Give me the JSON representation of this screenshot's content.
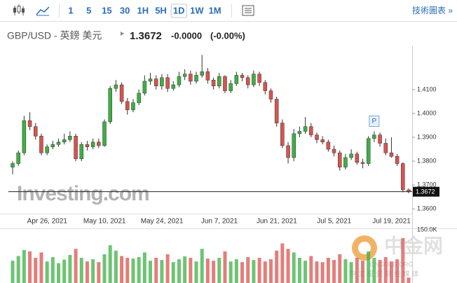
{
  "toolbar": {
    "intervals": [
      "1",
      "5",
      "15",
      "30",
      "1H",
      "5H",
      "1D",
      "1W",
      "1M"
    ],
    "selected_interval": "1D",
    "link": "技術圖表 »"
  },
  "chart_data": {
    "type": "candlestick",
    "title": "GBP/USD - 英鎊 美元",
    "last_price": {
      "value": 1.3672,
      "label": "1.3672"
    },
    "change": "-0.0000",
    "change_percent": "(-0.00%)",
    "watermark": "Investing.com",
    "marker": "P",
    "marker_index": 63,
    "footer_watermark": {
      "name": "中金网",
      "site": "CNGOLD.ORG",
      "tagline": "中 文 投 资 财 经 媒 体"
    },
    "up_color": "#3cb043",
    "down_color": "#d9534f",
    "ylim": [
      1.358,
      1.427
    ],
    "yticks": [
      {
        "value": 1.41,
        "label": "1.4100"
      },
      {
        "value": 1.4,
        "label": "1.4000"
      },
      {
        "value": 1.39,
        "label": "1.3900"
      },
      {
        "value": 1.38,
        "label": "1.3800"
      },
      {
        "value": 1.37,
        "label": "1.3700"
      },
      {
        "value": 1.36,
        "label": "1.3600"
      }
    ],
    "categories": [
      null,
      null,
      null,
      null,
      null,
      null,
      null,
      "Apr 26, 2021",
      null,
      null,
      null,
      null,
      null,
      null,
      null,
      null,
      null,
      "May 10, 2021",
      null,
      null,
      null,
      null,
      null,
      null,
      null,
      null,
      null,
      "May 24, 2021",
      null,
      null,
      null,
      null,
      null,
      null,
      null,
      null,
      null,
      "Jun 7, 2021",
      null,
      null,
      null,
      null,
      null,
      null,
      null,
      null,
      null,
      "Jun 21, 2021",
      null,
      null,
      null,
      null,
      null,
      null,
      null,
      null,
      null,
      "Jul 5, 2021",
      null,
      null,
      null,
      null,
      null,
      null,
      null,
      null,
      null,
      "Jul 19, 2021",
      null,
      null
    ],
    "open": [
      1.3775,
      1.379,
      1.3835,
      1.397,
      1.3945,
      1.3905,
      1.3835,
      1.386,
      1.387,
      1.388,
      1.389,
      1.3905,
      1.381,
      1.387,
      1.386,
      1.388,
      1.3865,
      1.3965,
      1.4105,
      1.412,
      1.405,
      1.4015,
      1.4045,
      1.4085,
      1.4135,
      1.4145,
      1.4115,
      1.415,
      1.4105,
      1.412,
      1.4155,
      1.4165,
      1.4135,
      1.416,
      1.4175,
      1.414,
      1.4115,
      1.4155,
      1.4095,
      1.4125,
      1.416,
      1.415,
      1.412,
      1.4165,
      1.413,
      1.4095,
      1.406,
      1.396,
      1.3865,
      1.3815,
      1.3915,
      1.3925,
      1.3945,
      1.391,
      1.389,
      1.388,
      1.385,
      1.3835,
      1.3775,
      1.3815,
      1.383,
      1.3795,
      1.379,
      1.3895,
      1.391,
      1.3875,
      1.3835,
      1.382,
      1.379,
      1.368
    ],
    "high": [
      1.38,
      1.3845,
      1.399,
      1.4005,
      1.396,
      1.3915,
      1.387,
      1.3885,
      1.3895,
      1.3915,
      1.3925,
      1.3915,
      1.388,
      1.3885,
      1.3895,
      1.3895,
      1.3975,
      1.4115,
      1.414,
      1.413,
      1.4065,
      1.406,
      1.41,
      1.416,
      1.417,
      1.416,
      1.4165,
      1.4165,
      1.4135,
      1.4175,
      1.4185,
      1.418,
      1.4175,
      1.4245,
      1.419,
      1.415,
      1.417,
      1.416,
      1.414,
      1.4175,
      1.417,
      1.416,
      1.418,
      1.4175,
      1.414,
      1.4105,
      1.407,
      1.3975,
      1.388,
      1.3935,
      1.3945,
      1.3985,
      1.396,
      1.392,
      1.3905,
      1.389,
      1.3865,
      1.3845,
      1.383,
      1.385,
      1.384,
      1.381,
      1.3905,
      1.3925,
      1.392,
      1.3895,
      1.39,
      1.383,
      1.3795,
      1.3685
    ],
    "low": [
      1.3745,
      1.378,
      1.3825,
      1.393,
      1.389,
      1.3825,
      1.3825,
      1.385,
      1.386,
      1.387,
      1.388,
      1.38,
      1.38,
      1.3845,
      1.385,
      1.3855,
      1.386,
      1.3955,
      1.409,
      1.404,
      1.3995,
      1.4005,
      1.4035,
      1.4075,
      1.412,
      1.41,
      1.41,
      1.409,
      1.4095,
      1.411,
      1.414,
      1.412,
      1.4125,
      1.415,
      1.4125,
      1.41,
      1.4105,
      1.4085,
      1.4085,
      1.4115,
      1.4135,
      1.4105,
      1.411,
      1.4115,
      1.408,
      1.4045,
      1.3945,
      1.3855,
      1.379,
      1.38,
      1.39,
      1.3915,
      1.39,
      1.3875,
      1.387,
      1.384,
      1.382,
      1.376,
      1.3765,
      1.3805,
      1.3785,
      1.377,
      1.378,
      1.388,
      1.386,
      1.3825,
      1.3815,
      1.378,
      1.367,
      1.3665
    ],
    "close": [
      1.379,
      1.3835,
      1.397,
      1.3945,
      1.3905,
      1.3835,
      1.386,
      1.387,
      1.388,
      1.389,
      1.3905,
      1.381,
      1.387,
      1.386,
      1.388,
      1.3865,
      1.3965,
      1.4105,
      1.412,
      1.405,
      1.4015,
      1.4045,
      1.4085,
      1.4135,
      1.4145,
      1.4115,
      1.415,
      1.4105,
      1.412,
      1.4155,
      1.4165,
      1.4135,
      1.416,
      1.4175,
      1.414,
      1.4115,
      1.4155,
      1.4095,
      1.4125,
      1.416,
      1.415,
      1.412,
      1.4165,
      1.413,
      1.4095,
      1.406,
      1.396,
      1.3865,
      1.3815,
      1.3915,
      1.3925,
      1.3945,
      1.391,
      1.389,
      1.388,
      1.385,
      1.3835,
      1.3775,
      1.3815,
      1.383,
      1.3795,
      1.379,
      1.3895,
      1.391,
      1.3875,
      1.3835,
      1.382,
      1.379,
      1.368,
      1.3672
    ],
    "volume": {
      "ylim": [
        0,
        150000
      ],
      "yticks": [
        {
          "value": 150000,
          "label": "150.0K"
        }
      ],
      "values": [
        62000,
        75000,
        92000,
        88000,
        70000,
        85000,
        60000,
        72000,
        55000,
        65000,
        78000,
        95000,
        70000,
        60000,
        66000,
        58000,
        80000,
        105000,
        90000,
        75000,
        70000,
        68000,
        72000,
        85000,
        62000,
        70000,
        64000,
        80000,
        58000,
        66000,
        74000,
        70000,
        60000,
        95000,
        68000,
        62000,
        70000,
        88000,
        60000,
        66000,
        58000,
        72000,
        64000,
        70000,
        60000,
        66000,
        90000,
        110000,
        95000,
        85000,
        70000,
        62000,
        75000,
        60000,
        58000,
        70000,
        64000,
        80000,
        66000,
        58000,
        70000,
        62000,
        88000,
        70000,
        64000,
        72000,
        60000,
        66000,
        125000,
        15000
      ]
    }
  }
}
